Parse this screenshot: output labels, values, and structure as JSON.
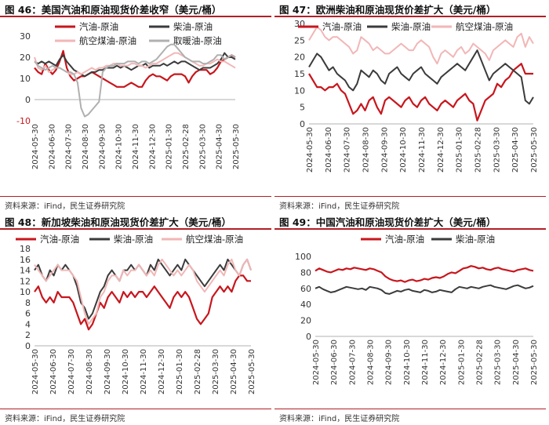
{
  "charts": [
    {
      "title": "图 46：美国汽油和原油现货价差收窄（美元/桶）",
      "source": "资料来源：iFind，民生证券研究院"
    },
    {
      "title": "图 47：欧洲柴油和原油现货价差扩大（美元/桶）",
      "source": "资料来源：iFind，民生证券研究院"
    },
    {
      "title": "图 48：新加坡柴油和原油现货价差扩大（美元/桶）",
      "source": "资料来源：iFind，民生证券研究院"
    },
    {
      "title": "图 49：中国汽油和原油现货价差扩大（美元/桶）",
      "source": "资料来源：iFind，民生证券研究院"
    }
  ],
  "chart_data": [
    {
      "type": "line",
      "x_ticks": [
        "2024-05-30",
        "2024-06-30",
        "2024-07-30",
        "2024-08-30",
        "2024-09-30",
        "2024-10-30",
        "2024-11-30",
        "2024-12-30",
        "2025-01-30",
        "2025-02-28",
        "2025-03-30",
        "2025-04-30",
        "2025-05-30"
      ],
      "ylim": [
        -10,
        30
      ],
      "y_ticks": [
        -10,
        0,
        10,
        20,
        30
      ],
      "legend_position": "top",
      "series": [
        {
          "name": "汽油-原油",
          "color": "#c8161d",
          "values": [
            15,
            13,
            12,
            17,
            14,
            12,
            14,
            18,
            23,
            15,
            11,
            9,
            10,
            11,
            11,
            12,
            13,
            12,
            11,
            10,
            9,
            8,
            7,
            6,
            6,
            6,
            7,
            8,
            7,
            6,
            6,
            9,
            11,
            12,
            11,
            11,
            10,
            9,
            11,
            12,
            12,
            12,
            11,
            8,
            11,
            13,
            14,
            14,
            14,
            12,
            13,
            15,
            18,
            19,
            20,
            21,
            20
          ]
        },
        {
          "name": "柴油-原油",
          "color": "#3b3b3b",
          "values": [
            18,
            17,
            18,
            17,
            18,
            17,
            16,
            19,
            21,
            18,
            16,
            14,
            13,
            12,
            11,
            12,
            13,
            13,
            14,
            14,
            15,
            15,
            15,
            16,
            15,
            16,
            15,
            14,
            15,
            16,
            16,
            17,
            15,
            16,
            16,
            16,
            17,
            16,
            17,
            18,
            17,
            18,
            18,
            17,
            16,
            15,
            14,
            15,
            15,
            15,
            16,
            17,
            19,
            22,
            20,
            20,
            19
          ]
        },
        {
          "name": "航空煤油-原油",
          "color": "#f2b6b6",
          "values": [
            20,
            15,
            14,
            16,
            13,
            14,
            15,
            15,
            14,
            13,
            12,
            12,
            13,
            12,
            13,
            14,
            15,
            14,
            15,
            15,
            16,
            16,
            17,
            17,
            16,
            16,
            16,
            17,
            17,
            16,
            16,
            15,
            16,
            17,
            17,
            18,
            19,
            20,
            21,
            22,
            22,
            21,
            20,
            19,
            18,
            17,
            16,
            16,
            17,
            17,
            18,
            19,
            18,
            18,
            17,
            16,
            15
          ]
        },
        {
          "name": "取暖油-原油",
          "color": "#b0b0b0",
          "values": [
            18,
            16,
            15,
            14,
            15,
            16,
            15,
            15,
            14,
            13,
            13,
            12,
            8,
            -4,
            -8,
            -7,
            -5,
            -3,
            -1,
            13,
            15,
            16,
            16,
            17,
            17,
            17,
            18,
            18,
            18,
            17,
            18,
            18,
            17,
            18,
            19,
            21,
            23,
            25,
            26,
            26,
            24,
            22,
            20,
            19,
            18,
            18,
            18,
            17,
            17,
            18,
            19,
            21,
            21,
            19,
            20,
            21,
            20
          ]
        }
      ]
    },
    {
      "type": "line",
      "x_ticks": [
        "2024-05-30",
        "2024-06-30",
        "2024-07-30",
        "2024-08-30",
        "2024-09-30",
        "2024-10-30",
        "2024-11-30",
        "2024-12-30",
        "2025-01-30",
        "2025-02-28",
        "2025-03-30",
        "2025-04-30",
        "2025-05-30"
      ],
      "ylim": [
        0,
        30
      ],
      "y_ticks": [
        0,
        5,
        10,
        15,
        20,
        25,
        30
      ],
      "legend_position": "top",
      "series": [
        {
          "name": "汽油-原油",
          "color": "#c8161d",
          "values": [
            15,
            13,
            11,
            11,
            10,
            11,
            11,
            12,
            10,
            9,
            6,
            3,
            4,
            6,
            4,
            7,
            8,
            5,
            3,
            7,
            8,
            7,
            6,
            5,
            7,
            8,
            6,
            5,
            7,
            8,
            6,
            5,
            4,
            6,
            7,
            6,
            5,
            7,
            8,
            9,
            7,
            6,
            1,
            4,
            7,
            8,
            9,
            12,
            11,
            13,
            14,
            16,
            17,
            18,
            15,
            15,
            15
          ]
        },
        {
          "name": "柴油-原油",
          "color": "#3b3b3b",
          "values": [
            17,
            19,
            21,
            20,
            18,
            16,
            17,
            15,
            14,
            13,
            11,
            10,
            12,
            16,
            15,
            14,
            16,
            15,
            13,
            12,
            15,
            16,
            17,
            15,
            14,
            13,
            15,
            16,
            17,
            15,
            14,
            13,
            12,
            14,
            15,
            16,
            17,
            18,
            17,
            16,
            18,
            20,
            22,
            19,
            16,
            13,
            15,
            16,
            17,
            18,
            17,
            16,
            15,
            14,
            7,
            6,
            8
          ]
        },
        {
          "name": "航空煤油-原油",
          "color": "#f2b6b6",
          "values": [
            25,
            27,
            29,
            28,
            26,
            25,
            26,
            26,
            25,
            24,
            23,
            21,
            22,
            26,
            25,
            24,
            22,
            23,
            22,
            21,
            21,
            22,
            23,
            24,
            23,
            22,
            22,
            24,
            25,
            24,
            23,
            20,
            18,
            21,
            22,
            21,
            20,
            22,
            23,
            21,
            22,
            24,
            23,
            22,
            21,
            19,
            22,
            23,
            24,
            25,
            24,
            23,
            26,
            27,
            23,
            26,
            24
          ]
        }
      ]
    },
    {
      "type": "line",
      "x_ticks": [
        "2024-05-30",
        "2024-06-30",
        "2024-07-30",
        "2024-08-30",
        "2024-09-30",
        "2024-10-30",
        "2024-11-30",
        "2024-12-30",
        "2025-01-30",
        "2025-02-28",
        "2025-03-30",
        "2025-04-30",
        "2025-05-30"
      ],
      "ylim": [
        0,
        18
      ],
      "y_ticks": [
        0,
        2,
        4,
        6,
        8,
        10,
        12,
        14,
        16,
        18
      ],
      "legend_position": "top",
      "series": [
        {
          "name": "汽油-原油",
          "color": "#c8161d",
          "values": [
            10,
            11,
            9,
            8,
            9,
            8,
            10,
            9,
            9,
            9,
            8,
            6,
            4,
            5,
            3,
            4,
            6,
            8,
            7,
            9,
            10,
            9,
            8,
            10,
            9,
            10,
            9,
            10,
            10,
            9,
            10,
            11,
            10,
            9,
            8,
            7,
            9,
            10,
            9,
            10,
            9,
            7,
            5,
            4,
            5,
            6,
            9,
            10,
            11,
            10,
            11,
            10,
            12,
            13,
            13,
            12,
            12
          ]
        },
        {
          "name": "柴油-原油",
          "color": "#3b3b3b",
          "values": [
            14,
            15,
            13,
            12,
            14,
            13,
            15,
            14,
            15,
            14,
            13,
            11,
            8,
            7,
            5,
            6,
            8,
            10,
            11,
            13,
            14,
            13,
            12,
            14,
            14,
            15,
            14,
            15,
            14,
            13,
            15,
            14,
            16,
            15,
            14,
            13,
            14,
            15,
            14,
            16,
            15,
            14,
            13,
            12,
            11,
            12,
            13,
            14,
            15,
            14,
            16,
            15,
            14,
            13,
            15,
            16,
            14
          ]
        },
        {
          "name": "航空煤油-原油",
          "color": "#f2b6b6",
          "values": [
            15,
            14,
            13,
            12,
            13,
            14,
            15,
            14,
            14,
            14,
            13,
            12,
            9,
            6,
            4,
            5,
            6,
            9,
            10,
            12,
            13,
            13,
            12,
            14,
            13,
            14,
            14,
            15,
            14,
            13,
            14,
            13,
            15,
            16,
            15,
            14,
            13,
            14,
            13,
            14,
            15,
            14,
            12,
            11,
            10,
            11,
            12,
            13,
            14,
            13,
            15,
            16,
            14,
            13,
            15,
            16,
            14
          ]
        }
      ]
    },
    {
      "type": "line",
      "x_ticks": [
        "2024-05-30",
        "2024-06-30",
        "2024-07-30",
        "2024-08-30",
        "2024-09-30",
        "2024-10-30",
        "2024-11-30",
        "2024-12-30",
        "2025-01-30",
        "2025-02-28",
        "2025-03-30",
        "2025-04-30",
        "2025-05-30"
      ],
      "ylim": [
        0,
        100
      ],
      "y_ticks": [
        0,
        20,
        40,
        60,
        80,
        100
      ],
      "legend_position": "top",
      "series": [
        {
          "name": "汽油-原油",
          "color": "#c8161d",
          "values": [
            82,
            85,
            83,
            81,
            80,
            82,
            84,
            83,
            85,
            84,
            86,
            85,
            84,
            83,
            85,
            84,
            82,
            80,
            75,
            72,
            70,
            69,
            70,
            68,
            70,
            71,
            69,
            70,
            72,
            71,
            73,
            74,
            73,
            75,
            78,
            80,
            79,
            82,
            85,
            86,
            88,
            87,
            85,
            86,
            84,
            83,
            85,
            86,
            84,
            83,
            82,
            81,
            83,
            84,
            85,
            83,
            82
          ]
        },
        {
          "name": "柴油-原油",
          "color": "#3b3b3b",
          "values": [
            60,
            62,
            59,
            57,
            55,
            56,
            58,
            60,
            62,
            61,
            60,
            59,
            60,
            58,
            62,
            61,
            60,
            58,
            54,
            53,
            55,
            57,
            56,
            58,
            59,
            57,
            56,
            55,
            58,
            57,
            55,
            56,
            58,
            57,
            56,
            55,
            59,
            62,
            61,
            60,
            62,
            61,
            60,
            62,
            63,
            64,
            62,
            61,
            60,
            59,
            61,
            63,
            64,
            62,
            60,
            61,
            63
          ]
        }
      ]
    }
  ]
}
